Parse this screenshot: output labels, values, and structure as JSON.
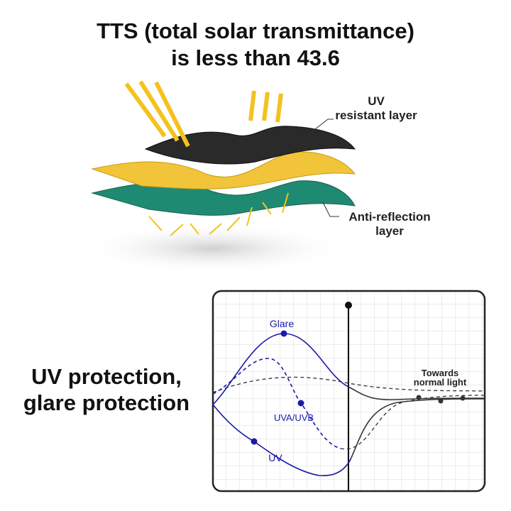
{
  "title": [
    "TTS (total solar transmittance)",
    "is less than 43.6"
  ],
  "layers": {
    "top_label": [
      "UV",
      "resistant layer"
    ],
    "bottom_label": [
      "Anti-reflection",
      "layer"
    ]
  },
  "heading": [
    "UV protection,",
    "glare protection"
  ],
  "graph": {
    "glare": "Glare",
    "uva_uvb": "UVA/UVB",
    "uv": "UV",
    "normal_light": [
      "Towards",
      "normal light"
    ]
  }
}
